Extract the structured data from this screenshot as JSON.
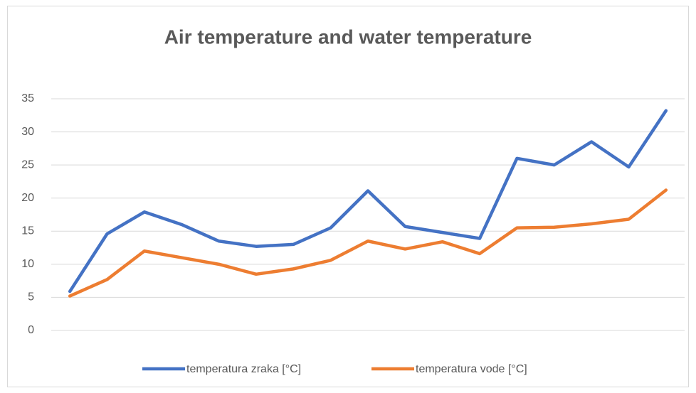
{
  "chart_data": {
    "type": "line",
    "title": "Air temperature and water temperature",
    "categories": [
      null,
      null,
      null,
      null,
      null,
      null,
      null,
      null,
      null,
      null,
      null,
      null,
      null,
      null,
      null,
      null,
      null
    ],
    "series": [
      {
        "name": "temperatura zraka [°C]",
        "color": "#4472c4",
        "values": [
          5.9,
          14.6,
          17.9,
          16.0,
          13.5,
          12.7,
          13.0,
          15.5,
          21.1,
          15.7,
          14.8,
          13.9,
          26.0,
          25.0,
          28.5,
          24.7,
          33.2
        ]
      },
      {
        "name": "temperatura vode [°C]",
        "color": "#ed7d31",
        "values": [
          5.2,
          7.7,
          12.0,
          11.0,
          10.0,
          8.5,
          9.3,
          10.6,
          13.5,
          12.3,
          13.4,
          11.6,
          15.5,
          15.6,
          16.1,
          16.8,
          21.2
        ]
      }
    ],
    "ylim": [
      0,
      35
    ],
    "yticks": [
      0,
      5,
      10,
      15,
      20,
      25,
      30,
      35
    ],
    "grid": true,
    "legend": "bottom"
  }
}
